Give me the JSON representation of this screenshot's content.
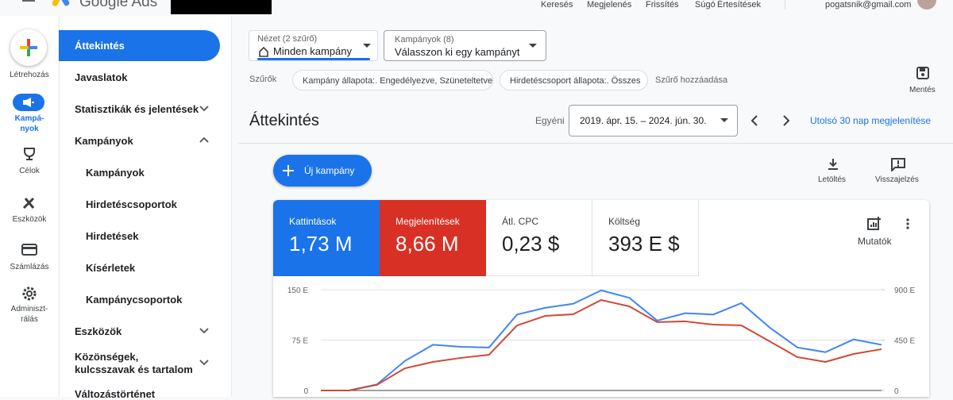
{
  "header": {
    "product": "Google Ads",
    "nav": [
      "Keresés",
      "Megjelenés",
      "Frissítés",
      "Súgó",
      "Értesítések"
    ],
    "account": "pogatsnik@gmail.com"
  },
  "rail": [
    "Létrehozás",
    "Kampá-\nnyok",
    "Célok",
    "Eszközök",
    "Számlázás",
    "Adminiszt-\nrálás"
  ],
  "sidebar": [
    "Áttekintés",
    "Javaslatok",
    "Statisztikák és jelentések",
    "Kampányok",
    "Kampányok",
    "Hirdetéscsoportok",
    "Hirdetések",
    "Kísérletek",
    "Kampánycsoportok",
    "Eszközök",
    "Közönségek, kulcsszavak és tartalom",
    "Változástörténet"
  ],
  "view_selector": {
    "label": "Nézet (2 szűrő)",
    "value": "Minden kampány"
  },
  "campaign_selector": {
    "label": "Kampányok (8)",
    "value": "Válasszon ki egy kampányt"
  },
  "filters": {
    "label": "Szűrők",
    "chips": [
      "Kampány állapota:. Engedélyezve, Szüneteltetve",
      "Hirdetéscsoport állapota:. Összes"
    ],
    "add": "Szűrő hozzáadása",
    "save": "Mentés"
  },
  "overview": {
    "title": "Áttekintés",
    "range_type": "Egyéni",
    "date_range": "2019. ápr. 15. – 2024. jún. 30.",
    "last_30": "Utolsó 30 nap megjelenítése",
    "new_campaign": "Új kampány",
    "download": "Letöltés",
    "feedback": "Visszajelzés",
    "metrics_button": "Mutatók"
  },
  "metric_cards": [
    {
      "value": "1,73 M"
    },
    {
      "value": "8,66 M"
    },
    {
      "label": "Átl. CPC",
      "value": "0,23 $"
    },
    {
      "label": "Költség",
      "value": "393 E $"
    }
  ],
  "chart_data": {
    "type": "line",
    "categories": [
      null,
      null,
      null,
      null,
      null,
      null,
      null,
      null,
      null,
      null,
      null,
      null,
      null,
      null,
      null,
      null,
      null,
      null,
      null,
      null,
      null
    ],
    "series": [
      {
        "name": "Kattintások",
        "color": "#4285f4",
        "axis": "y",
        "values": [
          0,
          0,
          9,
          44,
          68,
          65,
          64,
          113,
          123,
          129,
          149,
          138,
          104,
          115,
          113,
          130,
          94,
          64,
          57,
          76,
          68
        ]
      },
      {
        "name": "Megjelenítések",
        "color": "#d14836",
        "axis": "y2",
        "values": [
          0,
          0,
          50,
          198,
          255,
          291,
          319,
          581,
          666,
          680,
          808,
          751,
          610,
          617,
          588,
          581,
          440,
          298,
          255,
          326,
          369
        ]
      }
    ],
    "ylim": [
      0,
      150
    ],
    "yticks": [
      0,
      {
        "value": 75,
        "label": "75 E"
      },
      {
        "value": 150,
        "label": "150 E"
      }
    ],
    "y2lim": [
      0,
      900
    ],
    "y2ticks": [
      0,
      {
        "value": 450,
        "label": "450 E"
      },
      {
        "value": 900,
        "label": "900 E"
      }
    ],
    "grid": true
  }
}
